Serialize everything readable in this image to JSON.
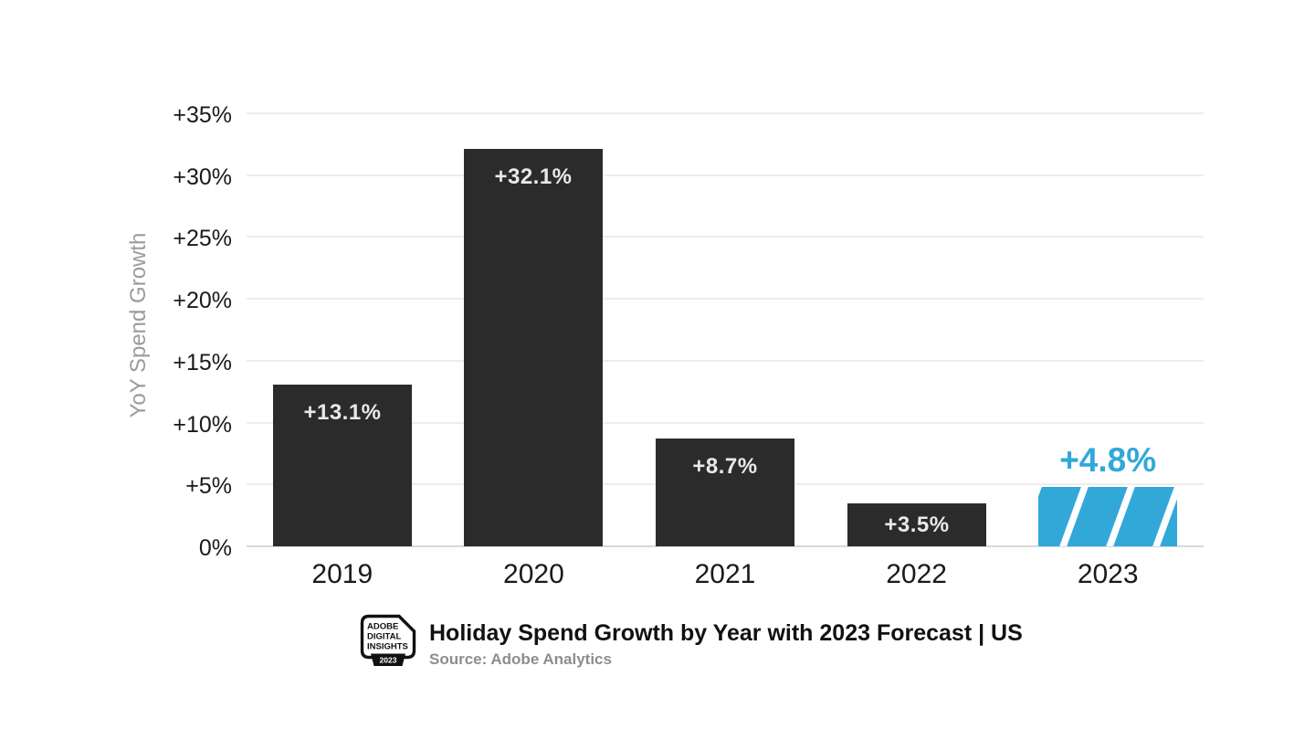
{
  "chart_data": {
    "type": "bar",
    "title": "Holiday Spend Growth by Year with 2023 Forecast | US",
    "source": "Source: Adobe Analytics",
    "ylabel": "YoY Spend Growth",
    "categories": [
      "2019",
      "2020",
      "2021",
      "2022",
      "2023"
    ],
    "values": [
      13.1,
      32.1,
      8.7,
      3.5,
      4.8
    ],
    "bar_labels": [
      "+13.1%",
      "+32.1%",
      "+8.7%",
      "+3.5%",
      "+4.8%"
    ],
    "forecast_index": 4,
    "ylim": [
      0,
      35
    ],
    "ytick_step": 5,
    "ytick_labels": [
      "0%",
      "+5%",
      "+10%",
      "+15%",
      "+20%",
      "+25%",
      "+30%",
      "+35%"
    ],
    "grid": true,
    "legend": "none",
    "colors": {
      "bar": "#2b2b2b",
      "forecast": "#32a8d8",
      "bar_label": "#e9e9e9",
      "gridline": "#ededed",
      "baseline": "#d8d8d8",
      "tick_text": "#1a1a1a",
      "axis_title": "#9b9b9b",
      "hatch": "#ffffff"
    }
  },
  "footer": {
    "logo": {
      "line1": "ADOBE",
      "line2": "DIGITAL",
      "line3": "INSIGHTS",
      "year": "2023"
    }
  }
}
